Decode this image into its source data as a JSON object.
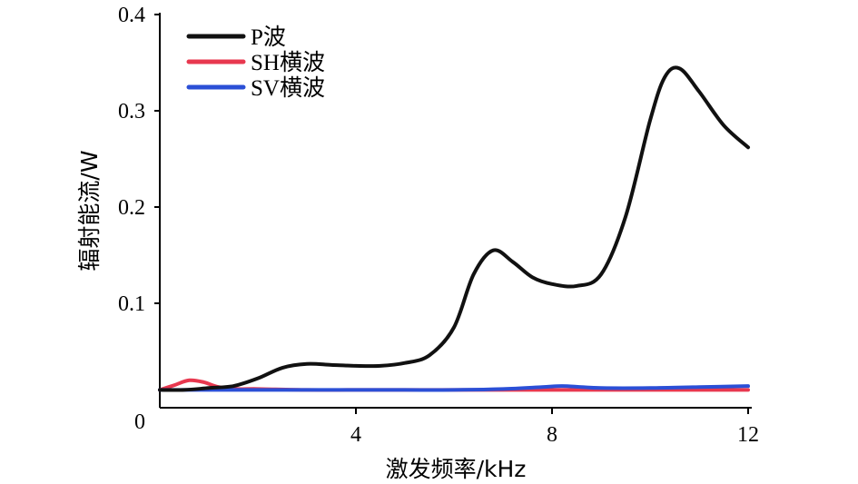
{
  "chart_data": {
    "type": "line",
    "title": "",
    "xlabel": "激发频率/kHz",
    "ylabel": "辐射能流/W",
    "xlim": [
      0,
      12
    ],
    "ylim": [
      0,
      0.4
    ],
    "x_ticks": [
      4,
      8,
      12
    ],
    "x_tick_labels": [
      "4",
      "8",
      "12"
    ],
    "y_ticks": [
      0,
      0.1,
      0.2,
      0.3,
      0.4
    ],
    "y_tick_labels": [
      "0",
      "0.1",
      "0.2",
      "0.3",
      "0.4"
    ],
    "grid": false,
    "legend_position": "top-left",
    "series": [
      {
        "name": "P波",
        "color": "#111111",
        "x": [
          0,
          0.5,
          1.0,
          1.5,
          2.0,
          2.5,
          3.0,
          3.5,
          4.0,
          4.5,
          5.0,
          5.5,
          6.0,
          6.4,
          6.8,
          7.2,
          7.6,
          8.0,
          8.5,
          9.0,
          9.5,
          10.0,
          10.3,
          10.6,
          11.0,
          11.5,
          12.0
        ],
        "y": [
          0.01,
          0.01,
          0.012,
          0.014,
          0.022,
          0.033,
          0.037,
          0.036,
          0.035,
          0.035,
          0.038,
          0.046,
          0.075,
          0.13,
          0.155,
          0.143,
          0.127,
          0.12,
          0.118,
          0.13,
          0.19,
          0.29,
          0.335,
          0.344,
          0.32,
          0.285,
          0.262
        ]
      },
      {
        "name": "SH横波",
        "color": "#e8384f",
        "x": [
          0,
          0.3,
          0.6,
          0.9,
          1.2,
          1.6,
          2,
          3,
          4,
          5,
          6,
          7,
          8,
          9,
          10,
          11,
          12
        ],
        "y": [
          0.01,
          0.015,
          0.02,
          0.018,
          0.013,
          0.011,
          0.011,
          0.01,
          0.01,
          0.01,
          0.01,
          0.01,
          0.01,
          0.01,
          0.01,
          0.01,
          0.01
        ]
      },
      {
        "name": "SV横波",
        "color": "#2b4fd6",
        "x": [
          0,
          1,
          2,
          3,
          4,
          5,
          6,
          7,
          7.8,
          8.2,
          8.6,
          9,
          10,
          11,
          12
        ],
        "y": [
          0.01,
          0.01,
          0.01,
          0.01,
          0.01,
          0.01,
          0.01,
          0.011,
          0.013,
          0.014,
          0.013,
          0.012,
          0.012,
          0.013,
          0.014
        ]
      }
    ]
  }
}
